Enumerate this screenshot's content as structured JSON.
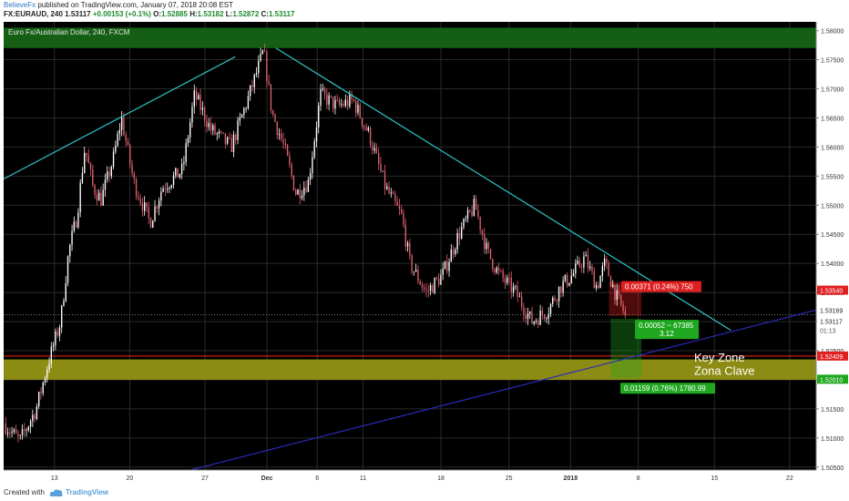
{
  "header": {
    "author": "BelieveFx",
    "published": "published on TradingView.com, January 07, 2018 20:08 EST",
    "symbol": "FX:EURAUD, 240",
    "last": "1.53117",
    "change": "+0.00153 (+0.1%)",
    "o_label": "O:",
    "o": "1.52885",
    "h_label": "H:",
    "h": "1.53182",
    "l_label": "L:",
    "l": "1.52872",
    "c_label": "C:",
    "c": "1.53117"
  },
  "footer": {
    "created_with": "Created with",
    "brand": "TradingView",
    "logo_icon": "tradingview-cloud-icon"
  },
  "chart_data": {
    "type": "candlestick",
    "title": "Euro Fx/Australian Dollar, 240, FXCM",
    "colors": {
      "background": "#000000",
      "up_candle": "#ffffff",
      "down_candle": "#e0606f",
      "trendline": "#2ec4c4",
      "support_line": "#2a2ab8",
      "zone_top": "#155f15",
      "zone_key": "#8c8c14",
      "price_level": "#e02020"
    },
    "y_axis": {
      "range": [
        1.5045,
        1.5815
      ],
      "ticks": [
        "1.58000",
        "1.57500",
        "1.57000",
        "1.56500",
        "1.56000",
        "1.55500",
        "1.55000",
        "1.54500",
        "1.54000",
        "1.53500",
        "1.53000",
        "1.52500",
        "1.52000",
        "1.51500",
        "1.51000",
        "1.50500"
      ]
    },
    "x_axis": {
      "ticks": [
        {
          "label": "13",
          "t": 0.0625
        },
        {
          "label": "20",
          "t": 0.1552
        },
        {
          "label": "27",
          "t": 0.2478
        },
        {
          "label": "Dec",
          "t": 0.324
        },
        {
          "label": "6",
          "t": 0.3859
        },
        {
          "label": "11",
          "t": 0.4423
        },
        {
          "label": "18",
          "t": 0.5381
        },
        {
          "label": "25",
          "t": 0.6218
        },
        {
          "label": "2018",
          "t": 0.6977
        },
        {
          "label": "8",
          "t": 0.781
        },
        {
          "label": "15",
          "t": 0.8747
        },
        {
          "label": "22",
          "t": 0.9673
        }
      ]
    },
    "path": [
      [
        0.0,
        1.5125
      ],
      [
        0.02,
        1.5095
      ],
      [
        0.04,
        1.515
      ],
      [
        0.055,
        1.523
      ],
      [
        0.07,
        1.53
      ],
      [
        0.08,
        1.542
      ],
      [
        0.09,
        1.548
      ],
      [
        0.1,
        1.56
      ],
      [
        0.11,
        1.553
      ],
      [
        0.12,
        1.551
      ],
      [
        0.135,
        1.558
      ],
      [
        0.145,
        1.565
      ],
      [
        0.16,
        1.554
      ],
      [
        0.18,
        1.547
      ],
      [
        0.195,
        1.553
      ],
      [
        0.22,
        1.556
      ],
      [
        0.235,
        1.569
      ],
      [
        0.255,
        1.563
      ],
      [
        0.28,
        1.56
      ],
      [
        0.3,
        1.568
      ],
      [
        0.32,
        1.5765
      ],
      [
        0.33,
        1.566
      ],
      [
        0.345,
        1.56
      ],
      [
        0.36,
        1.552
      ],
      [
        0.375,
        1.554
      ],
      [
        0.39,
        1.569
      ],
      [
        0.41,
        1.567
      ],
      [
        0.43,
        1.568
      ],
      [
        0.45,
        1.562
      ],
      [
        0.47,
        1.553
      ],
      [
        0.49,
        1.548
      ],
      [
        0.5,
        1.54
      ],
      [
        0.52,
        1.535
      ],
      [
        0.54,
        1.538
      ],
      [
        0.56,
        1.545
      ],
      [
        0.58,
        1.55
      ],
      [
        0.595,
        1.542
      ],
      [
        0.61,
        1.538
      ],
      [
        0.63,
        1.535
      ],
      [
        0.65,
        1.53
      ],
      [
        0.67,
        1.532
      ],
      [
        0.685,
        1.536
      ],
      [
        0.7,
        1.538
      ],
      [
        0.715,
        1.541
      ],
      [
        0.73,
        1.536
      ],
      [
        0.74,
        1.54
      ],
      [
        0.755,
        1.534
      ],
      [
        0.765,
        1.5312
      ]
    ],
    "last_price": 1.53117,
    "price_labels": {
      "level_1": "1.53540",
      "current": "1.53169",
      "current_2": "1.53117",
      "countdown": "01:13",
      "level_2": "1.52409",
      "level_3": "1.52010"
    },
    "zones": {
      "top_zone": [
        1.577,
        1.5805
      ],
      "key_zone": [
        1.52,
        1.5235
      ],
      "key_line": 1.52409
    },
    "trendlines": [
      {
        "name": "upper-left",
        "from": [
          0.0,
          1.5545
        ],
        "to": [
          0.285,
          1.5755
        ]
      },
      {
        "name": "descending",
        "from": [
          0.335,
          1.577
        ],
        "to": [
          0.895,
          1.5285
        ]
      },
      {
        "name": "ascending-support",
        "from": [
          0.23,
          1.5045
        ],
        "to": [
          1.0,
          1.532
        ]
      }
    ],
    "measurements": [
      {
        "text": "0.00371 (0.24%) 750",
        "color": "#e02020",
        "t": 0.76,
        "price": 1.5368
      },
      {
        "text_line1": "0.00052 ~ 67385",
        "text_line2": "3.12",
        "color": "#1fa81f",
        "t": 0.777,
        "price": 1.5303
      },
      {
        "text": "0.01159 (0.76%) 1780.99",
        "color": "#1fa81f",
        "t": 0.759,
        "price": 1.5198
      }
    ],
    "annotations": [
      "Key Zone",
      "Zona Clave"
    ]
  }
}
